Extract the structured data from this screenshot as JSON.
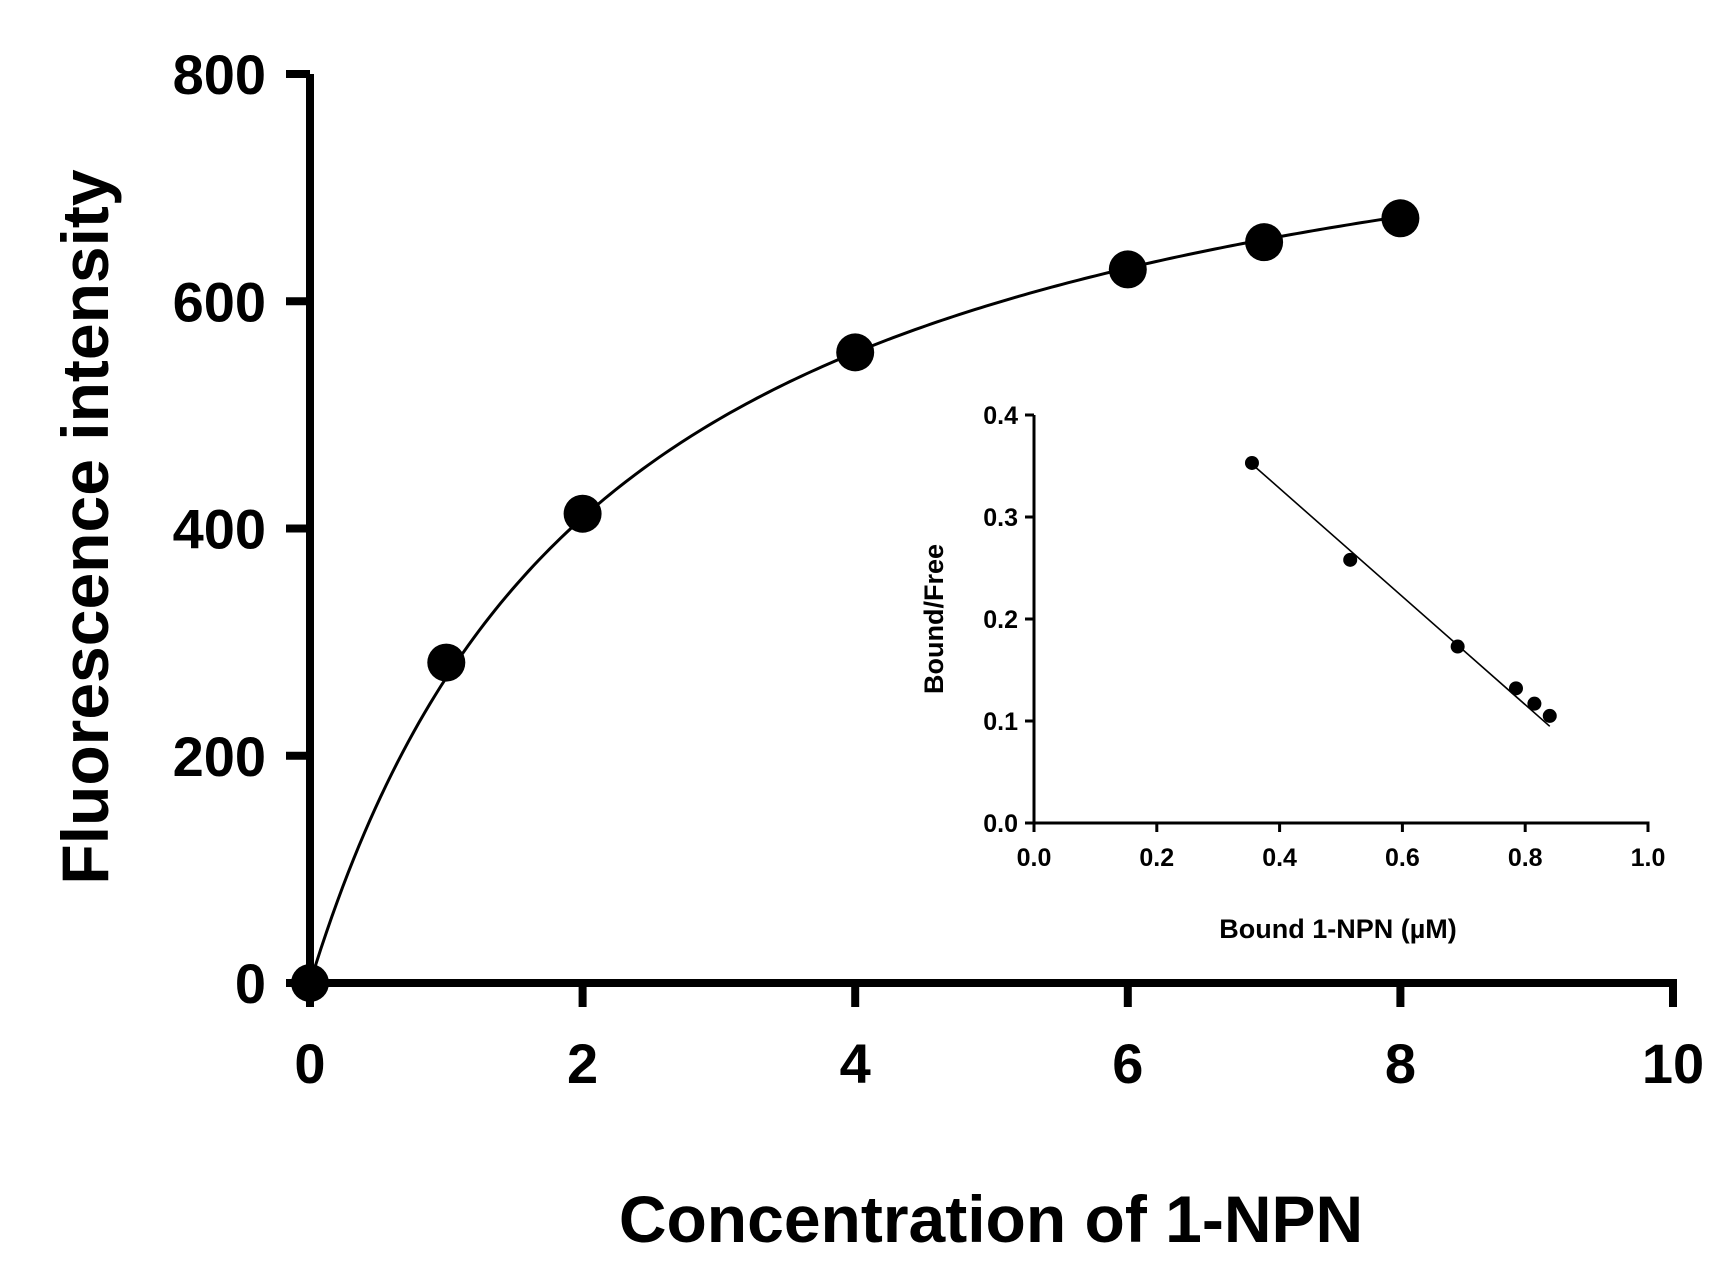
{
  "chart_data": [
    {
      "type": "scatter",
      "xlabel": "Concentration of 1-NPN",
      "ylabel": "Fluorescence intensity",
      "xlim": [
        0,
        10
      ],
      "ylim": [
        0,
        800
      ],
      "xticks": [
        "0",
        "2",
        "4",
        "6",
        "8",
        "10"
      ],
      "yticks": [
        "0",
        "200",
        "400",
        "600",
        "800"
      ],
      "grid": false,
      "series": [
        {
          "x": [
            0,
            1,
            2,
            4,
            6,
            7,
            8
          ],
          "y": [
            0,
            282,
            413,
            555,
            628,
            652,
            673
          ],
          "fit": {
            "model": "one-site binding",
            "bmax": 860,
            "kd": 2.2
          }
        }
      ],
      "color": "#000000"
    },
    {
      "type": "scatter",
      "xlabel": "Bound 1-NPN (µM)",
      "ylabel": "Bound/Free",
      "xlim": [
        0.0,
        1.0
      ],
      "ylim": [
        0.0,
        0.4
      ],
      "xticks": [
        "0.0",
        "0.2",
        "0.4",
        "0.6",
        "0.8",
        "1.0"
      ],
      "yticks": [
        "0.0",
        "0.1",
        "0.2",
        "0.3",
        "0.4"
      ],
      "grid": false,
      "series": [
        {
          "x": [
            0.355,
            0.515,
            0.69,
            0.785,
            0.815,
            0.84
          ],
          "y": [
            0.353,
            0.258,
            0.173,
            0.132,
            0.117,
            0.105
          ],
          "fit": {
            "model": "linear",
            "slope": -0.53,
            "intercept": 0.54,
            "x_range": [
              0.355,
              0.84
            ]
          }
        }
      ],
      "color": "#000000"
    }
  ]
}
